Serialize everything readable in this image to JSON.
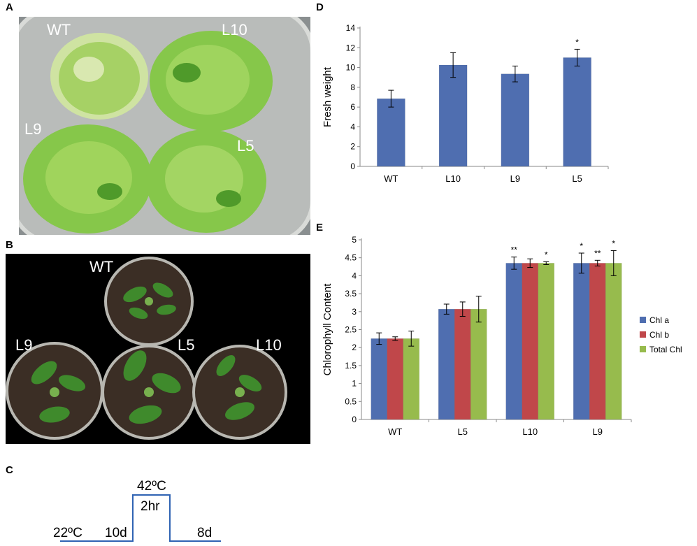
{
  "panels": {
    "A": {
      "letter": "A",
      "labels": {
        "wt": "WT",
        "l10": "L10",
        "l9": "L9",
        "l5": "L5"
      },
      "colors": {
        "background": "#8a8f90",
        "dish": "#c4c6c3",
        "plant": "#86c74a",
        "plant_dark": "#4f9a2a",
        "plant_pale": "#cfe3a2"
      }
    },
    "B": {
      "letter": "B",
      "labels": {
        "wt": "WT",
        "l9": "L9",
        "l5": "L5",
        "l10": "L10"
      },
      "colors": {
        "background": "#000000",
        "pot_rim": "#b8b7b1",
        "soil": "#3b2e25",
        "leaf": "#3f8a2c",
        "leaf_light": "#78b04e"
      }
    },
    "C": {
      "letter": "C",
      "labels": {
        "start_temp": "22ºC",
        "first_phase": "10d",
        "peak_temp": "42ºC",
        "peak_duration": "2hr",
        "last_phase": "8d"
      },
      "colors": {
        "line": "#2f63b3"
      }
    },
    "D": {
      "letter": "D"
    },
    "E": {
      "letter": "E"
    }
  },
  "chart_data": [
    {
      "panel": "D",
      "type": "bar",
      "categories": [
        "WT",
        "L10",
        "L9",
        "L5"
      ],
      "series": [
        {
          "values": [
            6.85,
            10.25,
            9.35,
            11.0
          ],
          "errors": [
            0.85,
            1.25,
            0.8,
            0.85
          ],
          "color": "#4f6eb0"
        }
      ],
      "significance": [
        "",
        "",
        "",
        "*"
      ],
      "xlabel": "",
      "ylabel": "Fresh weight",
      "ylim": [
        0,
        14
      ],
      "yticks": [
        "0",
        "2",
        "4",
        "6",
        "8",
        "10",
        "12",
        "14"
      ],
      "grid": false,
      "legend": "none"
    },
    {
      "panel": "E",
      "type": "bar",
      "categories": [
        "WT",
        "L5",
        "L10",
        "L9"
      ],
      "series": [
        {
          "name": "Chl a",
          "values": [
            2.25,
            3.07,
            4.35,
            4.35
          ],
          "errors": [
            0.16,
            0.14,
            0.17,
            0.28
          ],
          "color": "#4f6eb0",
          "significance": [
            "",
            "",
            "**",
            "*"
          ]
        },
        {
          "name": "Chl b",
          "values": [
            2.25,
            3.07,
            4.35,
            4.35
          ],
          "errors": [
            0.05,
            0.2,
            0.12,
            0.08
          ],
          "color": "#c0474a",
          "significance": [
            "",
            "",
            "",
            "**"
          ]
        },
        {
          "name": "Total Chl",
          "values": [
            2.25,
            3.07,
            4.35,
            4.35
          ],
          "errors": [
            0.21,
            0.36,
            0.04,
            0.35
          ],
          "color": "#97bb4d",
          "significance": [
            "",
            "",
            "*",
            "*"
          ]
        }
      ],
      "xlabel": "",
      "ylabel": "Chlorophyll Content",
      "ylim": [
        0,
        5
      ],
      "yticks": [
        "0",
        "0.5",
        "1",
        "1.5",
        "2",
        "2.5",
        "3",
        "3.5",
        "4",
        "4.5",
        "5"
      ],
      "grid": false,
      "legend": "right"
    }
  ]
}
